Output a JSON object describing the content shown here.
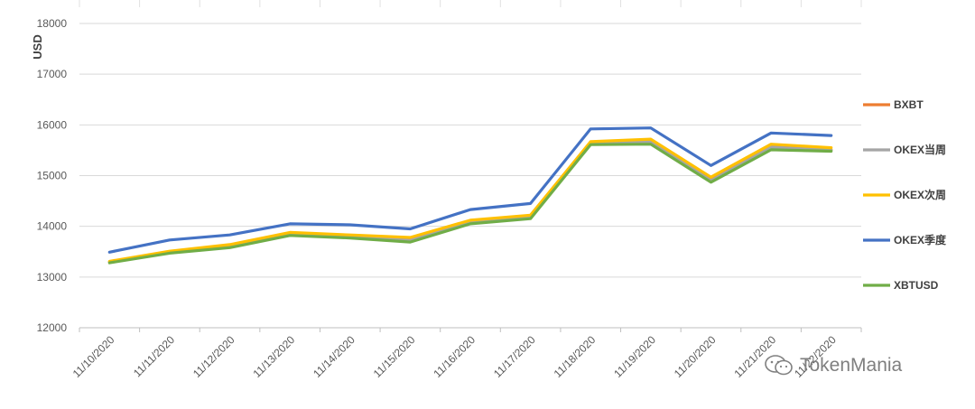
{
  "chart_data": {
    "type": "line",
    "ylabel": "USD",
    "ylim": [
      12000,
      18000
    ],
    "yticks": [
      12000,
      13000,
      14000,
      15000,
      16000,
      17000,
      18000
    ],
    "categories": [
      "11/10/2020",
      "11/11/2020",
      "11/12/2020",
      "11/13/2020",
      "11/14/2020",
      "11/15/2020",
      "11/16/2020",
      "11/17/2020",
      "11/18/2020",
      "11/19/2020",
      "11/20/2020",
      "11/21/2020",
      "11/22/2020"
    ],
    "grid": "horizontal",
    "legend_position": "right",
    "series": [
      {
        "name": "BXBT",
        "color": "#ed7d31",
        "values": [
          13300,
          13490,
          13610,
          13850,
          13800,
          13730,
          14090,
          14190,
          15640,
          15680,
          14920,
          15580,
          15510
        ]
      },
      {
        "name": "OKEX当周",
        "color": "#a5a5a5",
        "values": [
          13290,
          13480,
          13600,
          13840,
          13790,
          13720,
          14080,
          14180,
          15630,
          15670,
          14900,
          15560,
          15500
        ]
      },
      {
        "name": "OKEX次周",
        "color": "#ffc000",
        "values": [
          13310,
          13510,
          13640,
          13880,
          13830,
          13780,
          14120,
          14220,
          15670,
          15720,
          14970,
          15620,
          15550
        ]
      },
      {
        "name": "OKEX季度",
        "color": "#4472c4",
        "values": [
          13490,
          13730,
          13830,
          14050,
          14030,
          13950,
          14330,
          14450,
          15920,
          15940,
          15200,
          15840,
          15790
        ]
      },
      {
        "name": "XBTUSD",
        "color": "#70ad47",
        "values": [
          13280,
          13470,
          13580,
          13820,
          13770,
          13690,
          14050,
          14150,
          15610,
          15620,
          14870,
          15510,
          15480
        ]
      }
    ]
  },
  "watermark": {
    "text": "TokenMania",
    "icon": "wechat-icon"
  }
}
